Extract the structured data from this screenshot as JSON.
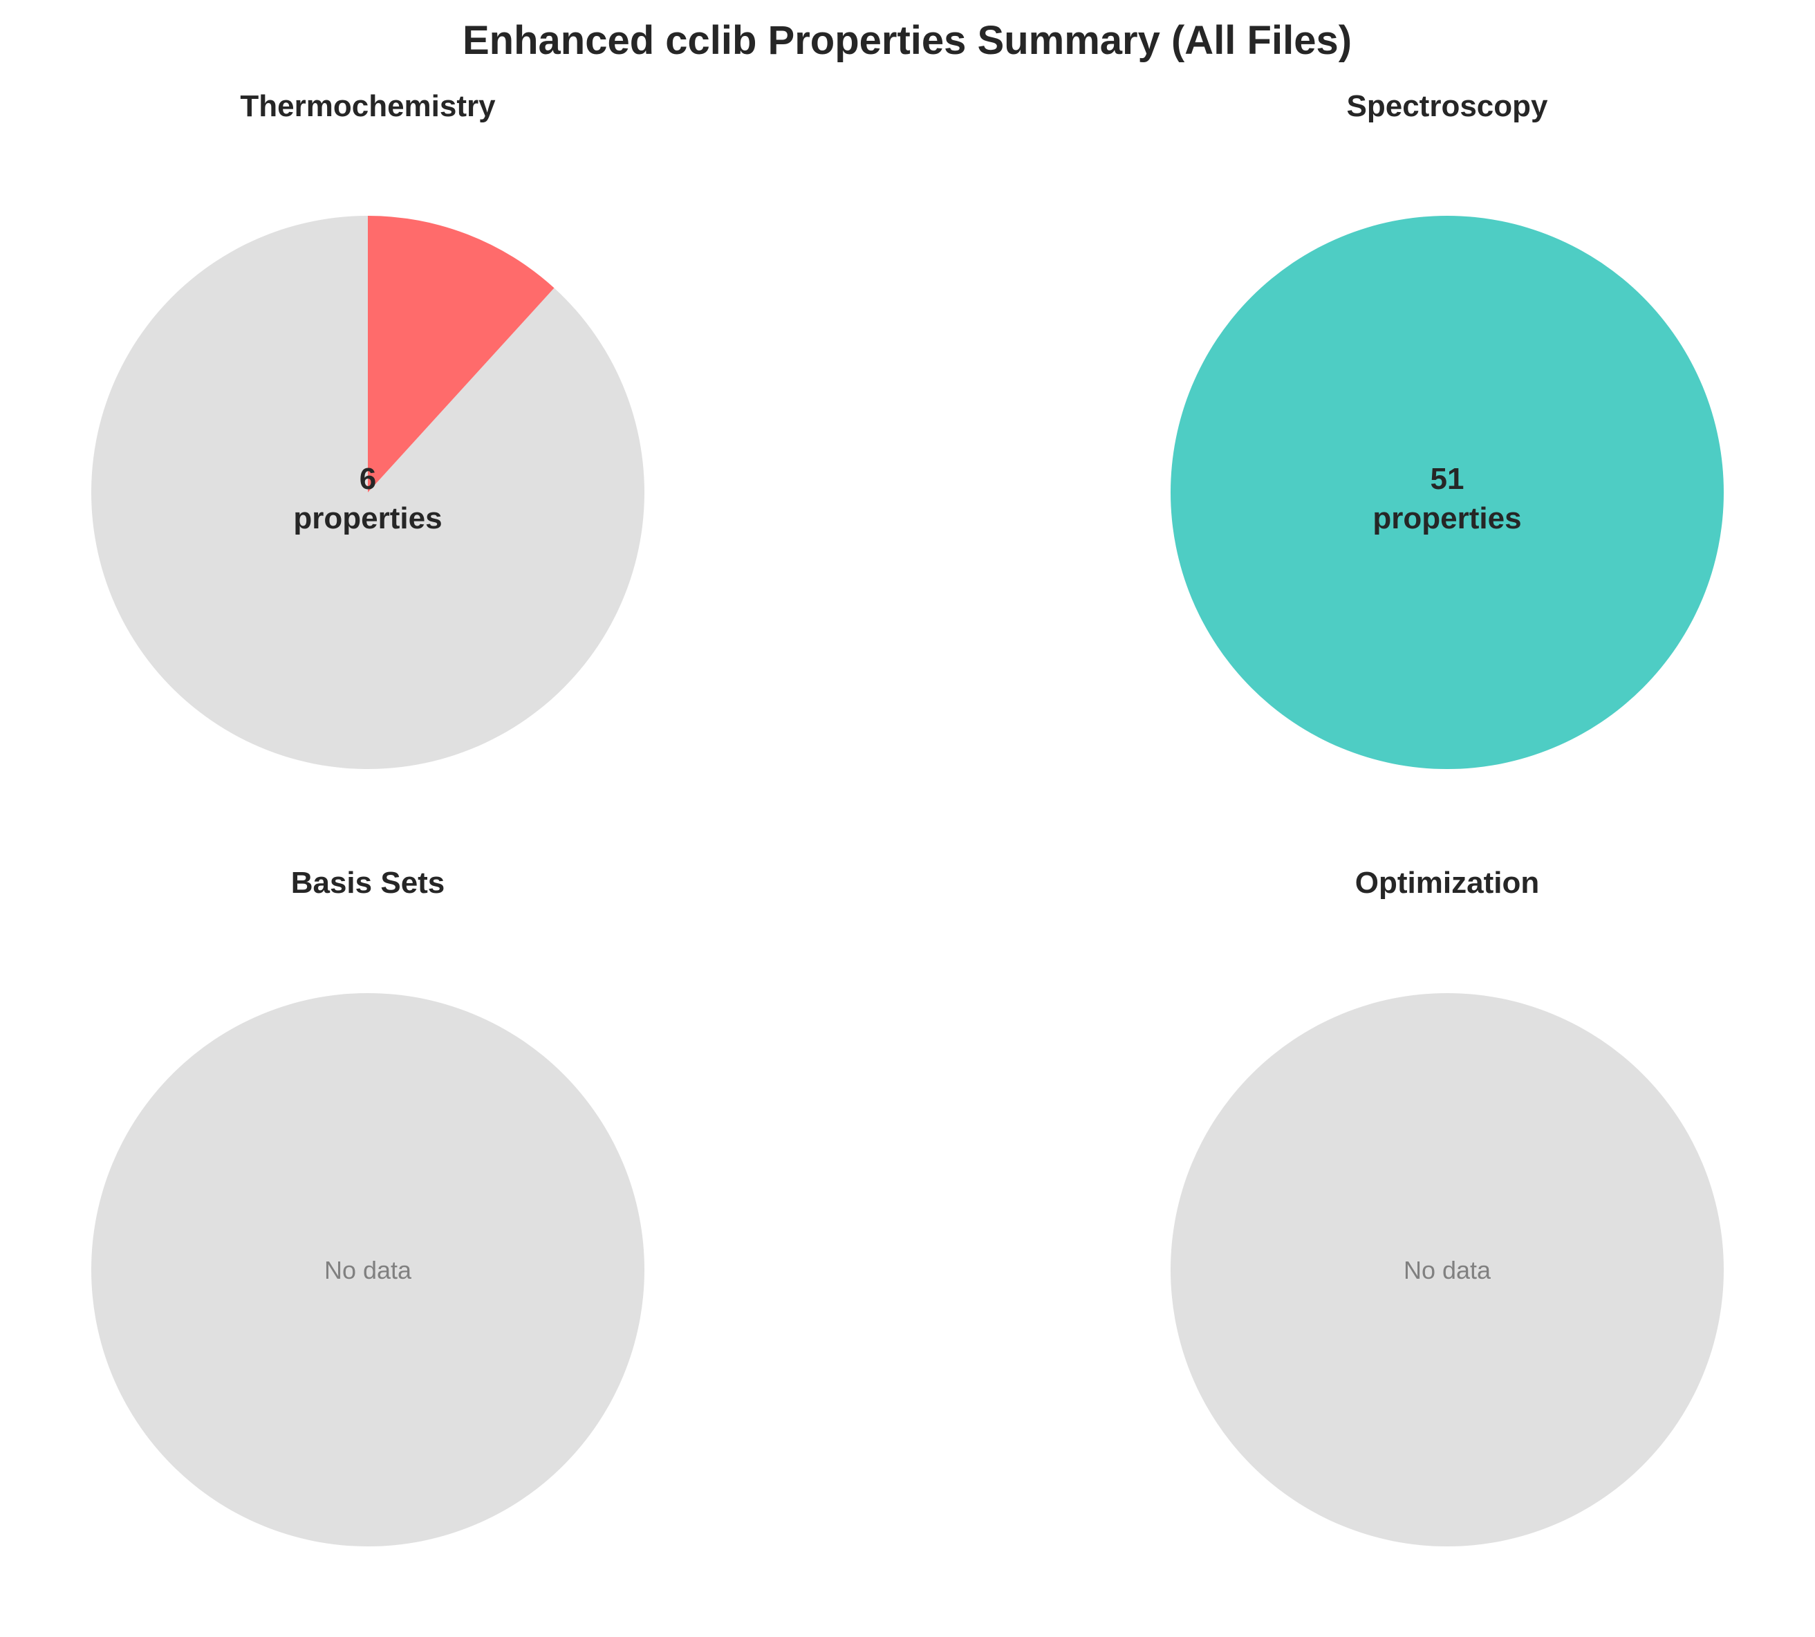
{
  "chart_data": {
    "title": "Enhanced cclib Properties Summary (All Files)",
    "type": "pie",
    "panels": [
      {
        "title": "Thermochemistry",
        "value": 6,
        "total": 51,
        "color": "#ff6b6b",
        "empty_color": "#e0e0e0",
        "center_value": "6",
        "center_unit": "properties",
        "no_data": false
      },
      {
        "title": "Spectroscopy",
        "value": 51,
        "total": 51,
        "color": "#4ecdc4",
        "empty_color": "#e0e0e0",
        "center_value": "51",
        "center_unit": "properties",
        "no_data": false
      },
      {
        "title": "Basis Sets",
        "value": 0,
        "total": 51,
        "color": "#e0e0e0",
        "empty_color": "#e0e0e0",
        "no_data_label": "No data",
        "no_data": true
      },
      {
        "title": "Optimization",
        "value": 0,
        "total": 51,
        "color": "#e0e0e0",
        "empty_color": "#e0e0e0",
        "no_data_label": "No data",
        "no_data": true
      }
    ]
  }
}
